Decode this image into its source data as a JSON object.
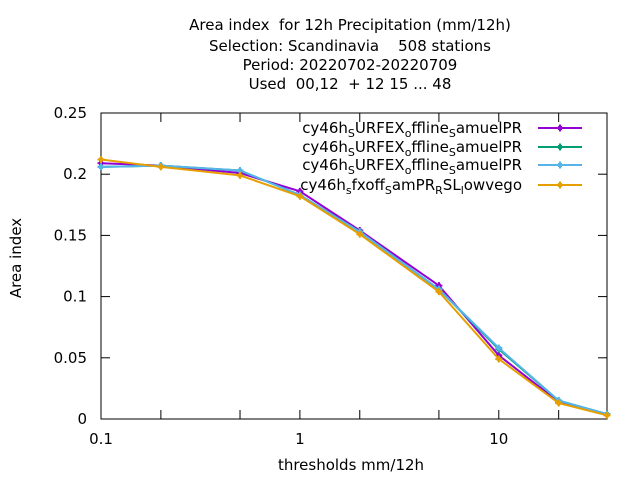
{
  "chart_data": {
    "type": "line",
    "title_lines": [
      "Area index  for 12h Precipitation (mm/12h)",
      "Selection: Scandinavia    508 stations",
      "Period: 20220702-20220709",
      "Used  00,12  + 12 15 ... 48"
    ],
    "xlabel": "thresholds mm/12h",
    "ylabel": "Area index",
    "x_scale": "log",
    "xlim": [
      0.1,
      35
    ],
    "ylim": [
      0,
      0.25
    ],
    "x_ticks": [
      0.1,
      1,
      10
    ],
    "x_tick_labels": [
      "0.1",
      "1",
      "10"
    ],
    "x_minor_ticks": [
      0.2,
      0.5,
      2,
      5,
      20
    ],
    "y_ticks": [
      0,
      0.05,
      0.1,
      0.15,
      0.2,
      0.25
    ],
    "y_tick_labels": [
      "0",
      "0.05",
      "0.1",
      "0.15",
      "0.2",
      "0.25"
    ],
    "grid": false,
    "legend_position": "top-right",
    "x": [
      0.1,
      0.2,
      0.5,
      1,
      2,
      5,
      10,
      20,
      35
    ],
    "series": [
      {
        "legend_main": [
          "cy46h",
          "URFEX",
          "ffline",
          "amuelPR"
        ],
        "legend_sub": [
          "S",
          "o",
          "S"
        ],
        "color": "#9400d3",
        "values": [
          0.209,
          0.207,
          0.201,
          0.186,
          0.154,
          0.109,
          0.052,
          0.014,
          0.004
        ]
      },
      {
        "legend_main": [
          "cy46h",
          "URFEX",
          "ffline",
          "amuelPR"
        ],
        "legend_sub": [
          "S",
          "o",
          "S"
        ],
        "color": "#009e73",
        "values": [
          0.206,
          0.207,
          0.203,
          0.183,
          0.153,
          0.106,
          0.057,
          0.015,
          0.004
        ]
      },
      {
        "legend_main": [
          "cy46h",
          "URFEX",
          "ffline",
          "amuelPR"
        ],
        "legend_sub": [
          "S",
          "o",
          "S"
        ],
        "color": "#56b4e9",
        "values": [
          0.206,
          0.207,
          0.203,
          0.183,
          0.153,
          0.106,
          0.058,
          0.015,
          0.004
        ]
      },
      {
        "legend_main": [
          "cy46h",
          "fxoff",
          "amPR",
          "SL",
          "owvego"
        ],
        "legend_sub": [
          "s",
          "S",
          "R",
          "l"
        ],
        "color": "#e69f00",
        "values": [
          0.212,
          0.206,
          0.199,
          0.182,
          0.151,
          0.104,
          0.049,
          0.013,
          0.003
        ]
      }
    ]
  }
}
